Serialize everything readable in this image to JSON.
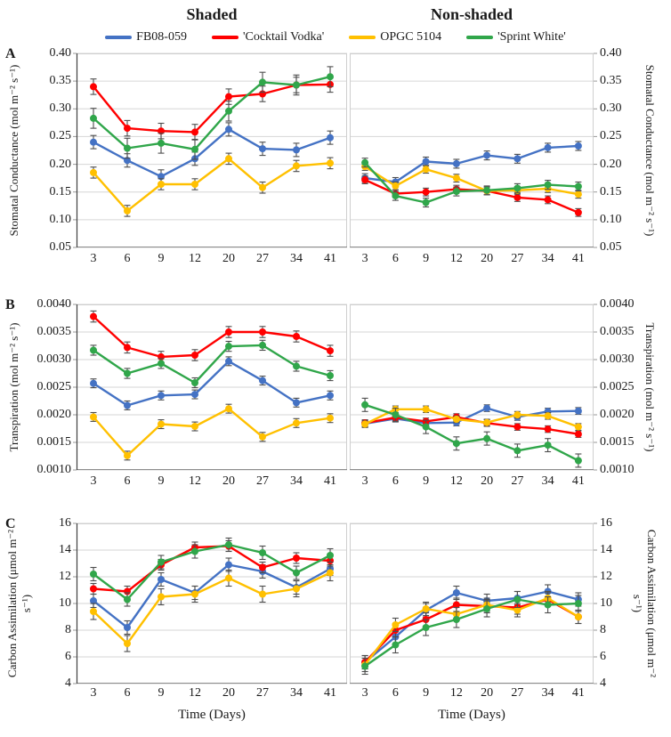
{
  "header": {
    "left_title": "Shaded",
    "right_title": "Non-shaded"
  },
  "legend": {
    "items": [
      {
        "label": "FB08-059",
        "color": "#4472C4"
      },
      {
        "label": "'Cocktail Vodka'",
        "color": "#FF0000"
      },
      {
        "label": "OPGC 5104",
        "color": "#FFC000"
      },
      {
        "label": "'Sprint White'",
        "color": "#30A64A"
      }
    ]
  },
  "axes": {
    "x_title": "Time (Days)",
    "grid_color": "#D6D6D6",
    "axis_color": "#404040",
    "error_bar_color": "#4D4D4D"
  },
  "chart_data": [
    {
      "type": "line",
      "panel": "A",
      "condition": "Shaded",
      "ylabel": "Stomatal Conductance (mol m⁻² s⁻¹)",
      "xlabel": "Time (Days)",
      "ylim": [
        0.05,
        0.4
      ],
      "yticks": [
        "0.40",
        "0.35",
        "0.30",
        "0.25",
        "0.20",
        "0.15",
        "0.10",
        "0.05"
      ],
      "categories": [
        "3",
        "6",
        "9",
        "12",
        "20",
        "27",
        "34",
        "41"
      ],
      "grid": true,
      "series": [
        {
          "name": "FB08-059",
          "color": "#4472C4",
          "values": [
            0.24,
            0.207,
            0.178,
            0.21,
            0.263,
            0.228,
            0.226,
            0.248
          ],
          "err": 0.012
        },
        {
          "name": "'Cocktail Vodka'",
          "color": "#FF0000",
          "values": [
            0.34,
            0.265,
            0.26,
            0.258,
            0.322,
            0.327,
            0.343,
            0.344
          ],
          "err": 0.014
        },
        {
          "name": "OPGC 5104",
          "color": "#FFC000",
          "values": [
            0.185,
            0.116,
            0.164,
            0.164,
            0.21,
            0.158,
            0.197,
            0.202
          ],
          "err": 0.01
        },
        {
          "name": "'Sprint White'",
          "color": "#30A64A",
          "values": [
            0.283,
            0.229,
            0.238,
            0.227,
            0.296,
            0.348,
            0.343,
            0.358
          ],
          "err": 0.018
        }
      ]
    },
    {
      "type": "line",
      "panel": "A",
      "condition": "Non-shaded",
      "ylabel": "Stomatal Conductance (mol m⁻² s⁻¹)",
      "xlabel": "Time (Days)",
      "ylim": [
        0.05,
        0.4
      ],
      "yticks": [
        "0.40",
        "0.35",
        "0.30",
        "0.25",
        "0.20",
        "0.15",
        "0.10",
        "0.05"
      ],
      "categories": [
        "3",
        "6",
        "9",
        "12",
        "20",
        "27",
        "34",
        "41"
      ],
      "grid": true,
      "series": [
        {
          "name": "FB08-059",
          "color": "#4472C4",
          "values": [
            0.175,
            0.168,
            0.205,
            0.201,
            0.216,
            0.21,
            0.23,
            0.233
          ],
          "err": 0.008
        },
        {
          "name": "'Cocktail Vodka'",
          "color": "#FF0000",
          "values": [
            0.172,
            0.147,
            0.15,
            0.155,
            0.152,
            0.14,
            0.136,
            0.113
          ],
          "err": 0.007
        },
        {
          "name": "OPGC 5104",
          "color": "#FFC000",
          "values": [
            0.196,
            0.161,
            0.191,
            0.175,
            0.152,
            0.153,
            0.156,
            0.146
          ],
          "err": 0.007
        },
        {
          "name": "'Sprint White'",
          "color": "#30A64A",
          "values": [
            0.203,
            0.143,
            0.131,
            0.151,
            0.153,
            0.157,
            0.163,
            0.16
          ],
          "err": 0.008
        }
      ]
    },
    {
      "type": "line",
      "panel": "B",
      "condition": "Shaded",
      "ylabel": "Transpiration (mol m⁻² s⁻¹)",
      "xlabel": "Time (Days)",
      "ylim": [
        0.001,
        0.004
      ],
      "yticks": [
        "0.0040",
        "0.0035",
        "0.0030",
        "0.0025",
        "0.0020",
        "0.0015",
        "0.0010"
      ],
      "categories": [
        "3",
        "6",
        "9",
        "12",
        "20",
        "27",
        "34",
        "41"
      ],
      "grid": true,
      "series": [
        {
          "name": "FB08-059",
          "color": "#4472C4",
          "values": [
            0.00257,
            0.00217,
            0.00235,
            0.00237,
            0.00297,
            0.00262,
            0.00222,
            0.00235
          ],
          "err": 8e-05
        },
        {
          "name": "'Cocktail Vodka'",
          "color": "#FF0000",
          "values": [
            0.00378,
            0.00322,
            0.00305,
            0.00308,
            0.0035,
            0.0035,
            0.00342,
            0.00316
          ],
          "err": 0.0001
        },
        {
          "name": "OPGC 5104",
          "color": "#FFC000",
          "values": [
            0.00196,
            0.00126,
            0.00183,
            0.00179,
            0.00211,
            0.0016,
            0.00185,
            0.00194
          ],
          "err": 8e-05
        },
        {
          "name": "'Sprint White'",
          "color": "#30A64A",
          "values": [
            0.00317,
            0.00275,
            0.00293,
            0.00258,
            0.00324,
            0.00326,
            0.00288,
            0.00271
          ],
          "err": 9e-05
        }
      ]
    },
    {
      "type": "line",
      "panel": "B",
      "condition": "Non-shaded",
      "ylabel": "Transpiration (mol m⁻² s⁻¹)",
      "xlabel": "Time (Days)",
      "ylim": [
        0.001,
        0.004
      ],
      "yticks": [
        "0.0040",
        "0.0035",
        "0.0030",
        "0.0025",
        "0.0020",
        "0.0015",
        "0.0010"
      ],
      "categories": [
        "3",
        "6",
        "9",
        "12",
        "20",
        "27",
        "34",
        "41"
      ],
      "grid": true,
      "series": [
        {
          "name": "FB08-059",
          "color": "#4472C4",
          "values": [
            0.00184,
            0.00193,
            0.00185,
            0.00186,
            0.00212,
            0.00196,
            0.00206,
            0.00207
          ],
          "err": 6e-05
        },
        {
          "name": "'Cocktail Vodka'",
          "color": "#FF0000",
          "values": [
            0.00185,
            0.00195,
            0.00188,
            0.00196,
            0.00185,
            0.00178,
            0.00174,
            0.00165
          ],
          "err": 6e-05
        },
        {
          "name": "OPGC 5104",
          "color": "#FFC000",
          "values": [
            0.00183,
            0.0021,
            0.0021,
            0.00192,
            0.00186,
            0.002,
            0.00198,
            0.00178
          ],
          "err": 6e-05
        },
        {
          "name": "'Sprint White'",
          "color": "#30A64A",
          "values": [
            0.00218,
            0.002,
            0.00178,
            0.00148,
            0.00157,
            0.00135,
            0.00145,
            0.00117
          ],
          "err": 0.00012
        }
      ]
    },
    {
      "type": "line",
      "panel": "C",
      "condition": "Shaded",
      "ylabel": "Carbon Assimilation (μmol m⁻² s⁻¹)",
      "xlabel": "Time (Days)",
      "ylim": [
        4,
        16
      ],
      "yticks": [
        "16",
        "14",
        "12",
        "10",
        "8",
        "6",
        "4"
      ],
      "categories": [
        "3",
        "6",
        "9",
        "12",
        "20",
        "27",
        "34",
        "41"
      ],
      "grid": true,
      "series": [
        {
          "name": "FB08-059",
          "color": "#4472C4",
          "values": [
            10.2,
            8.2,
            11.8,
            10.8,
            12.9,
            12.4,
            11.2,
            12.6
          ],
          "err": 0.5
        },
        {
          "name": "'Cocktail Vodka'",
          "color": "#FF0000",
          "values": [
            11.1,
            10.9,
            12.9,
            14.2,
            14.3,
            12.7,
            13.4,
            13.2
          ],
          "err": 0.4
        },
        {
          "name": "OPGC 5104",
          "color": "#FFC000",
          "values": [
            9.4,
            7.0,
            10.5,
            10.7,
            11.9,
            10.7,
            11.1,
            12.3
          ],
          "err": 0.6
        },
        {
          "name": "'Sprint White'",
          "color": "#30A64A",
          "values": [
            12.2,
            10.3,
            13.1,
            13.9,
            14.4,
            13.8,
            12.3,
            13.6
          ],
          "err": 0.5
        }
      ]
    },
    {
      "type": "line",
      "panel": "C",
      "condition": "Non-shaded",
      "ylabel": "Carbon Assimilation (μmol m⁻² s⁻¹)",
      "xlabel": "Time (Days)",
      "ylim": [
        4,
        16
      ],
      "yticks": [
        "16",
        "14",
        "12",
        "10",
        "8",
        "6",
        "4"
      ],
      "categories": [
        "3",
        "6",
        "9",
        "12",
        "20",
        "27",
        "34",
        "41"
      ],
      "grid": true,
      "series": [
        {
          "name": "FB08-059",
          "color": "#4472C4",
          "values": [
            5.6,
            7.5,
            9.5,
            10.8,
            10.2,
            10.4,
            10.9,
            10.3
          ],
          "err": 0.5
        },
        {
          "name": "'Cocktail Vodka'",
          "color": "#FF0000",
          "values": [
            5.6,
            8.0,
            8.8,
            9.9,
            9.8,
            9.7,
            10.3,
            9.0
          ],
          "err": 0.5
        },
        {
          "name": "OPGC 5104",
          "color": "#FFC000",
          "values": [
            5.4,
            8.4,
            9.6,
            9.2,
            9.9,
            9.5,
            10.4,
            9.0
          ],
          "err": 0.5
        },
        {
          "name": "'Sprint White'",
          "color": "#30A64A",
          "values": [
            5.3,
            6.9,
            8.2,
            8.8,
            9.6,
            10.3,
            9.9,
            10.0
          ],
          "err": 0.6
        }
      ]
    }
  ]
}
